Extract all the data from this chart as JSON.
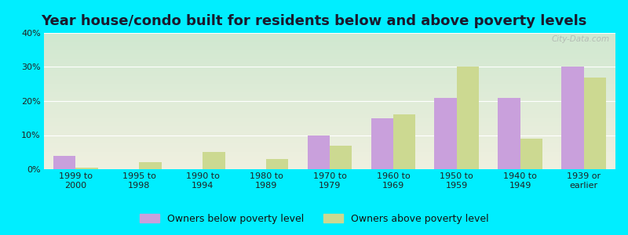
{
  "title": "Year house/condo built for residents below and above poverty levels",
  "categories": [
    "1999 to\n2000",
    "1995 to\n1998",
    "1990 to\n1994",
    "1980 to\n1989",
    "1970 to\n1979",
    "1960 to\n1969",
    "1950 to\n1959",
    "1940 to\n1949",
    "1939 or\nearlier"
  ],
  "below_poverty": [
    4,
    0,
    0,
    0,
    10,
    15,
    21,
    21,
    30
  ],
  "above_poverty": [
    0.5,
    2,
    5,
    3,
    7,
    16,
    30,
    9,
    27
  ],
  "below_color": "#c9a0dc",
  "above_color": "#ccd991",
  "background_color": "#00eeff",
  "plot_bg_top": "#d0e8d0",
  "plot_bg_bottom": "#f0f0e0",
  "ylim": [
    0,
    40
  ],
  "yticks": [
    0,
    10,
    20,
    30,
    40
  ],
  "bar_width": 0.35,
  "title_fontsize": 13,
  "tick_fontsize": 8,
  "legend_fontsize": 9,
  "legend_below_label": "Owners below poverty level",
  "legend_above_label": "Owners above poverty level"
}
